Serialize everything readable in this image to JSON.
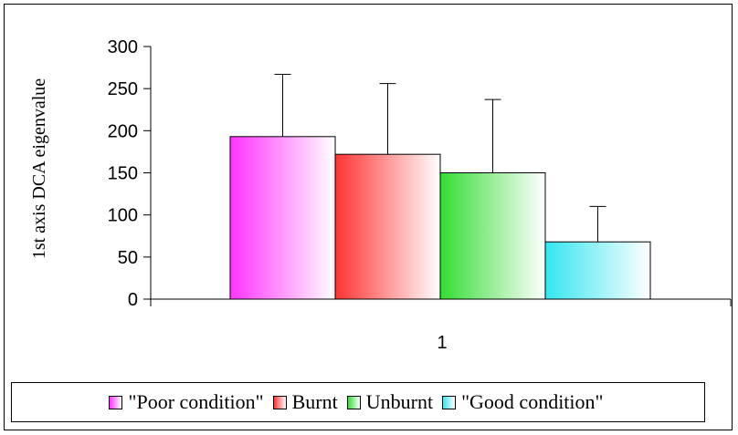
{
  "chart_data": {
    "type": "bar",
    "categories": [
      "1"
    ],
    "series": [
      {
        "name": "\"Poor condition\"",
        "values": [
          193
        ],
        "error": [
          74
        ],
        "color": "#ff33ff"
      },
      {
        "name": "Burnt",
        "values": [
          172
        ],
        "error": [
          84
        ],
        "color": "#ff3333"
      },
      {
        "name": "Unburnt",
        "values": [
          150
        ],
        "error": [
          87
        ],
        "color": "#33dd33"
      },
      {
        "name": "\"Good condition\"",
        "values": [
          68
        ],
        "error": [
          42
        ],
        "color": "#33e6f0"
      }
    ],
    "title": "",
    "xlabel": "",
    "ylabel": "1st axis DCA eigenvalue",
    "ylim": [
      0,
      300
    ],
    "yticks": [
      "0",
      "50",
      "100",
      "150",
      "200",
      "250",
      "300"
    ],
    "grid": false,
    "legend_position": "bottom"
  }
}
